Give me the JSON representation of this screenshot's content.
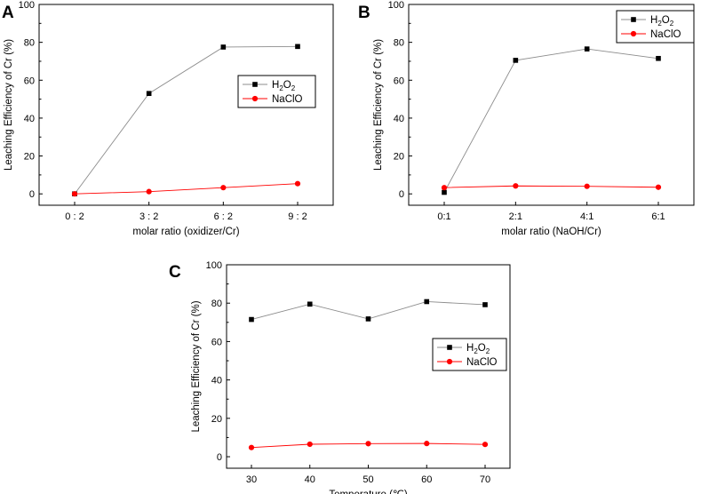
{
  "chart_data": [
    {
      "panel": "A",
      "type": "line",
      "categories": [
        "0 : 2",
        "3 : 2",
        "6 : 2",
        "9 : 2"
      ],
      "xlabel": "molar ratio (oxidizer/Cr)",
      "ylabel": "Leaching Efficiency of Cr (%)",
      "ylim": [
        -6,
        100
      ],
      "yticks": [
        0,
        20,
        40,
        60,
        80,
        100
      ],
      "legend_position": "right-middle",
      "series": [
        {
          "name": "H2O2",
          "label_main": "H",
          "label_sub1": "2",
          "label_mid": "O",
          "label_sub2": "2",
          "color": "#000000",
          "marker": "square",
          "line_color": "#8c8c8c",
          "values": [
            0,
            53,
            77.5,
            77.8
          ]
        },
        {
          "name": "NaClO",
          "label_main": "NaClO",
          "color": "#ff0000",
          "marker": "circle",
          "line_color": "#ff0000",
          "values": [
            0,
            1.2,
            3.3,
            5.4
          ]
        }
      ]
    },
    {
      "panel": "B",
      "type": "line",
      "categories": [
        "0:1",
        "2:1",
        "4:1",
        "6:1"
      ],
      "xlabel": "molar ratio (NaOH/Cr)",
      "ylabel": "Leaching Efficiency of Cr (%)",
      "ylim": [
        -6,
        100
      ],
      "yticks": [
        0,
        20,
        40,
        60,
        80,
        100
      ],
      "legend_position": "top-right",
      "series": [
        {
          "name": "H2O2",
          "label_main": "H",
          "label_sub1": "2",
          "label_mid": "O",
          "label_sub2": "2",
          "color": "#000000",
          "marker": "square",
          "line_color": "#8c8c8c",
          "values": [
            0.8,
            70.5,
            76.5,
            71.5
          ]
        },
        {
          "name": "NaClO",
          "label_main": "NaClO",
          "color": "#ff0000",
          "marker": "circle",
          "line_color": "#ff0000",
          "values": [
            3.3,
            4.2,
            4.0,
            3.5
          ]
        }
      ]
    },
    {
      "panel": "C",
      "type": "line",
      "categories": [
        "30",
        "40",
        "50",
        "60",
        "70"
      ],
      "xlabel": "Temperature (℃)",
      "ylabel": "Leaching Efficiency of Cr (%)",
      "ylim": [
        -6,
        100
      ],
      "yticks": [
        0,
        20,
        40,
        60,
        80,
        100
      ],
      "legend_position": "right-middle",
      "series": [
        {
          "name": "H2O2",
          "label_main": "H",
          "label_sub1": "2",
          "label_mid": "O",
          "label_sub2": "2",
          "color": "#000000",
          "marker": "square",
          "line_color": "#8c8c8c",
          "values": [
            71.5,
            79.5,
            71.8,
            80.8,
            79.2
          ]
        },
        {
          "name": "NaClO",
          "label_main": "NaClO",
          "color": "#ff0000",
          "marker": "circle",
          "line_color": "#ff0000",
          "values": [
            4.8,
            6.5,
            6.8,
            6.9,
            6.4
          ]
        }
      ]
    }
  ]
}
